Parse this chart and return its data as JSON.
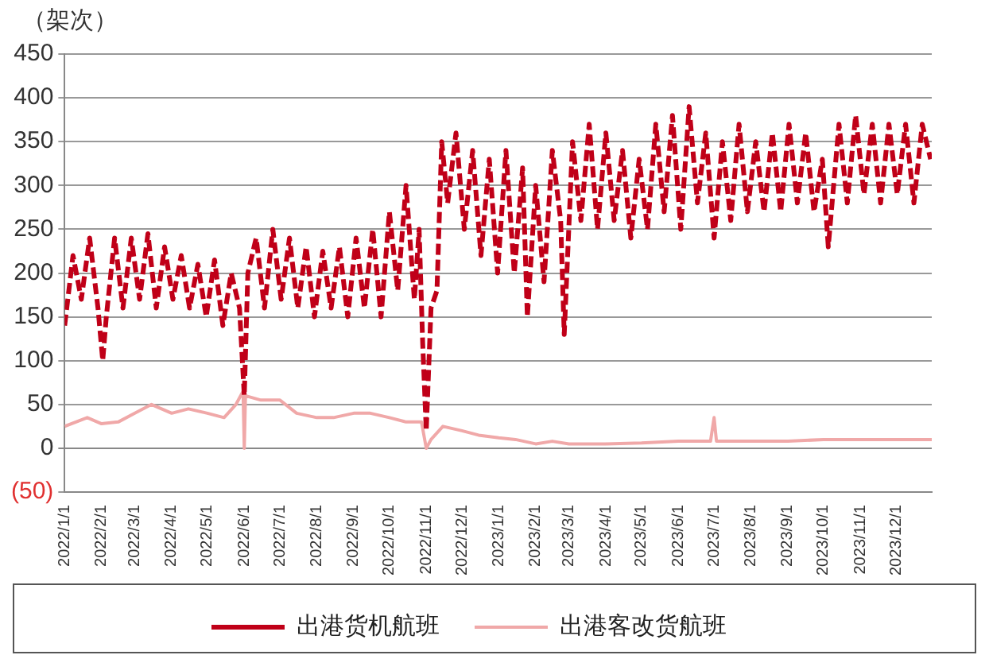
{
  "chart_data": {
    "type": "line",
    "ylabel": "（架次）",
    "xlim": [
      "2022-01-01",
      "2023-12-31"
    ],
    "xticks": [
      {
        "value": "2022-01-01",
        "label": "2022/1/1"
      },
      {
        "value": "2022-02-01",
        "label": "2022/2/1"
      },
      {
        "value": "2022-03-01",
        "label": "2022/3/1"
      },
      {
        "value": "2022-04-01",
        "label": "2022/4/1"
      },
      {
        "value": "2022-05-01",
        "label": "2022/5/1"
      },
      {
        "value": "2022-06-01",
        "label": "2022/6/1"
      },
      {
        "value": "2022-07-01",
        "label": "2022/7/1"
      },
      {
        "value": "2022-08-01",
        "label": "2022/8/1"
      },
      {
        "value": "2022-09-01",
        "label": "2022/9/1"
      },
      {
        "value": "2022-10-01",
        "label": "2022/10/1"
      },
      {
        "value": "2022-11-01",
        "label": "2022/11/1"
      },
      {
        "value": "2022-12-01",
        "label": "2022/12/1"
      },
      {
        "value": "2023-01-01",
        "label": "2023/1/1"
      },
      {
        "value": "2023-02-01",
        "label": "2023/2/1"
      },
      {
        "value": "2023-03-01",
        "label": "2023/3/1"
      },
      {
        "value": "2023-04-01",
        "label": "2023/4/1"
      },
      {
        "value": "2023-05-01",
        "label": "2023/5/1"
      },
      {
        "value": "2023-06-01",
        "label": "2023/6/1"
      },
      {
        "value": "2023-07-01",
        "label": "2023/7/1"
      },
      {
        "value": "2023-08-01",
        "label": "2023/8/1"
      },
      {
        "value": "2023-09-01",
        "label": "2023/9/1"
      },
      {
        "value": "2023-10-01",
        "label": "2023/10/1"
      },
      {
        "value": "2023-11-01",
        "label": "2023/11/1"
      },
      {
        "value": "2023-12-01",
        "label": "2023/12/1"
      }
    ],
    "ylim": [
      -50,
      450
    ],
    "yticks": [
      {
        "value": -50,
        "label": "(50)"
      },
      0,
      50,
      100,
      150,
      200,
      250,
      300,
      350,
      400,
      450
    ],
    "grid": "y",
    "legend": "bottom",
    "series": [
      {
        "name": "出港货机航班",
        "color": "#c00018",
        "line_style": "dashed",
        "x": [
          "2022-01-01",
          "2022-01-08",
          "2022-01-15",
          "2022-01-22",
          "2022-01-29",
          "2022-02-02",
          "2022-02-05",
          "2022-02-12",
          "2022-02-19",
          "2022-02-26",
          "2022-03-05",
          "2022-03-12",
          "2022-03-19",
          "2022-03-26",
          "2022-04-02",
          "2022-04-09",
          "2022-04-16",
          "2022-04-23",
          "2022-04-30",
          "2022-05-07",
          "2022-05-14",
          "2022-05-21",
          "2022-05-28",
          "2022-06-01",
          "2022-06-04",
          "2022-06-11",
          "2022-06-18",
          "2022-06-25",
          "2022-07-02",
          "2022-07-09",
          "2022-07-16",
          "2022-07-23",
          "2022-07-30",
          "2022-08-06",
          "2022-08-13",
          "2022-08-20",
          "2022-08-27",
          "2022-09-03",
          "2022-09-10",
          "2022-09-17",
          "2022-09-24",
          "2022-10-01",
          "2022-10-08",
          "2022-10-15",
          "2022-10-22",
          "2022-10-26",
          "2022-10-29",
          "2022-11-01",
          "2022-11-05",
          "2022-11-10",
          "2022-11-14",
          "2022-11-19",
          "2022-11-26",
          "2022-12-03",
          "2022-12-10",
          "2022-12-17",
          "2022-12-24",
          "2022-12-31",
          "2023-01-07",
          "2023-01-14",
          "2023-01-21",
          "2023-01-25",
          "2023-02-01",
          "2023-02-08",
          "2023-02-15",
          "2023-02-22",
          "2023-02-25",
          "2023-03-04",
          "2023-03-11",
          "2023-03-18",
          "2023-03-25",
          "2023-04-01",
          "2023-04-08",
          "2023-04-15",
          "2023-04-22",
          "2023-04-29",
          "2023-05-06",
          "2023-05-13",
          "2023-05-20",
          "2023-05-27",
          "2023-06-03",
          "2023-06-10",
          "2023-06-17",
          "2023-06-24",
          "2023-07-01",
          "2023-07-08",
          "2023-07-15",
          "2023-07-22",
          "2023-07-29",
          "2023-08-05",
          "2023-08-12",
          "2023-08-19",
          "2023-08-26",
          "2023-09-02",
          "2023-09-09",
          "2023-09-16",
          "2023-09-23",
          "2023-09-30",
          "2023-10-05",
          "2023-10-14",
          "2023-10-21",
          "2023-10-28",
          "2023-11-04",
          "2023-11-11",
          "2023-11-18",
          "2023-11-25",
          "2023-12-02",
          "2023-12-09",
          "2023-12-16",
          "2023-12-23",
          "2023-12-30"
        ],
        "values": [
          140,
          220,
          170,
          240,
          160,
          100,
          150,
          240,
          160,
          240,
          170,
          245,
          160,
          230,
          170,
          220,
          160,
          210,
          150,
          215,
          140,
          200,
          160,
          60,
          200,
          240,
          160,
          250,
          170,
          240,
          160,
          230,
          150,
          225,
          160,
          230,
          150,
          240,
          160,
          250,
          150,
          270,
          180,
          300,
          170,
          250,
          120,
          20,
          160,
          180,
          350,
          280,
          360,
          250,
          340,
          220,
          330,
          200,
          340,
          200,
          320,
          150,
          300,
          190,
          340,
          260,
          130,
          350,
          260,
          370,
          250,
          360,
          260,
          340,
          240,
          330,
          250,
          370,
          270,
          380,
          250,
          390,
          280,
          360,
          240,
          350,
          260,
          370,
          270,
          350,
          270,
          360,
          270,
          370,
          280,
          360,
          270,
          330,
          230,
          370,
          280,
          380,
          290,
          370,
          280,
          370,
          290,
          370,
          280,
          370,
          330
        ]
      },
      {
        "name": "出港客改货航班",
        "color": "#f0a8a8",
        "line_style": "solid",
        "x": [
          "2022-01-01",
          "2022-01-20",
          "2022-02-01",
          "2022-02-15",
          "2022-03-01",
          "2022-03-15",
          "2022-04-01",
          "2022-04-15",
          "2022-05-01",
          "2022-05-15",
          "2022-05-25",
          "2022-05-31",
          "2022-06-01",
          "2022-06-02",
          "2022-06-15",
          "2022-07-01",
          "2022-07-15",
          "2022-08-01",
          "2022-08-15",
          "2022-09-01",
          "2022-09-15",
          "2022-10-01",
          "2022-10-15",
          "2022-10-28",
          "2022-11-01",
          "2022-11-05",
          "2022-11-15",
          "2022-12-01",
          "2022-12-15",
          "2023-01-01",
          "2023-01-15",
          "2023-02-01",
          "2023-02-15",
          "2023-03-01",
          "2023-04-01",
          "2023-05-01",
          "2023-06-01",
          "2023-06-28",
          "2023-07-01",
          "2023-07-03",
          "2023-08-01",
          "2023-09-01",
          "2023-10-01",
          "2023-11-01",
          "2023-12-01",
          "2023-12-31"
        ],
        "values": [
          25,
          35,
          28,
          30,
          40,
          50,
          40,
          45,
          40,
          35,
          50,
          65,
          0,
          60,
          55,
          55,
          40,
          35,
          35,
          40,
          40,
          35,
          30,
          30,
          0,
          10,
          25,
          20,
          15,
          12,
          10,
          5,
          8,
          5,
          5,
          6,
          8,
          8,
          35,
          8,
          8,
          8,
          10,
          10,
          10,
          10
        ]
      }
    ]
  }
}
